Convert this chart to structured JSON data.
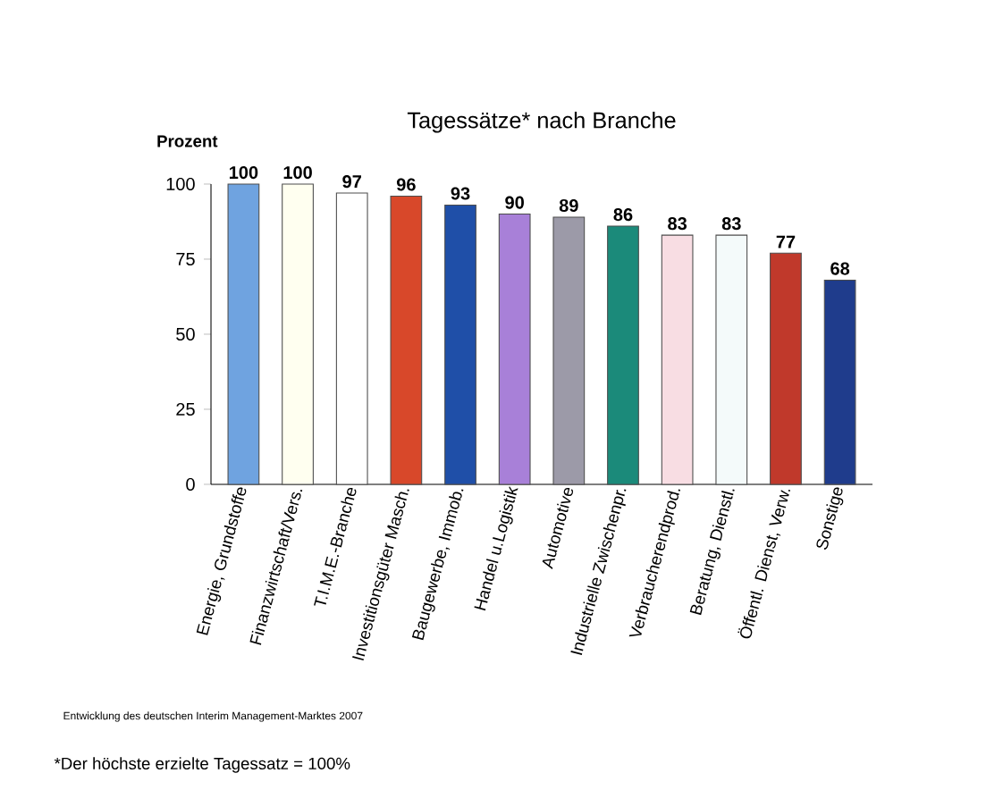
{
  "chart_data": {
    "type": "bar",
    "title": "Tagessätze* nach Branche",
    "ylabel": "Prozent",
    "categories": [
      "Energie, Grundstoffe",
      "Finanzwirtschaft/Vers.",
      "T.I.M.E.-Branche",
      "Investitionsgüter Masch.",
      "Baugewerbe, Immob.",
      "Handel u.Logistik",
      "Automotive",
      "Industrielle Zwischenpr.",
      "Verbraucherendprod.",
      "Beratung, Dienstl.",
      "Öffentl. Dienst, Verw.",
      "Sonstige"
    ],
    "values": [
      100,
      100,
      97,
      96,
      93,
      90,
      89,
      86,
      83,
      83,
      77,
      68
    ],
    "colors": [
      "#6fa3e0",
      "#fffff0",
      "#ffffff",
      "#d8482a",
      "#1f4fa8",
      "#a880d8",
      "#9c9aa8",
      "#1b8a7a",
      "#f8dde3",
      "#f4fafa",
      "#c0392b",
      "#1f3c8c"
    ],
    "data_labels": true,
    "ylim": [
      0,
      100
    ],
    "yticks": [
      0,
      25,
      50,
      75,
      100
    ],
    "grid": false,
    "annotations": [
      "Entwicklung des deutschen Interim Management-Marktes 2007",
      "*Der höchste erzielte Tagessatz = 100%"
    ]
  }
}
